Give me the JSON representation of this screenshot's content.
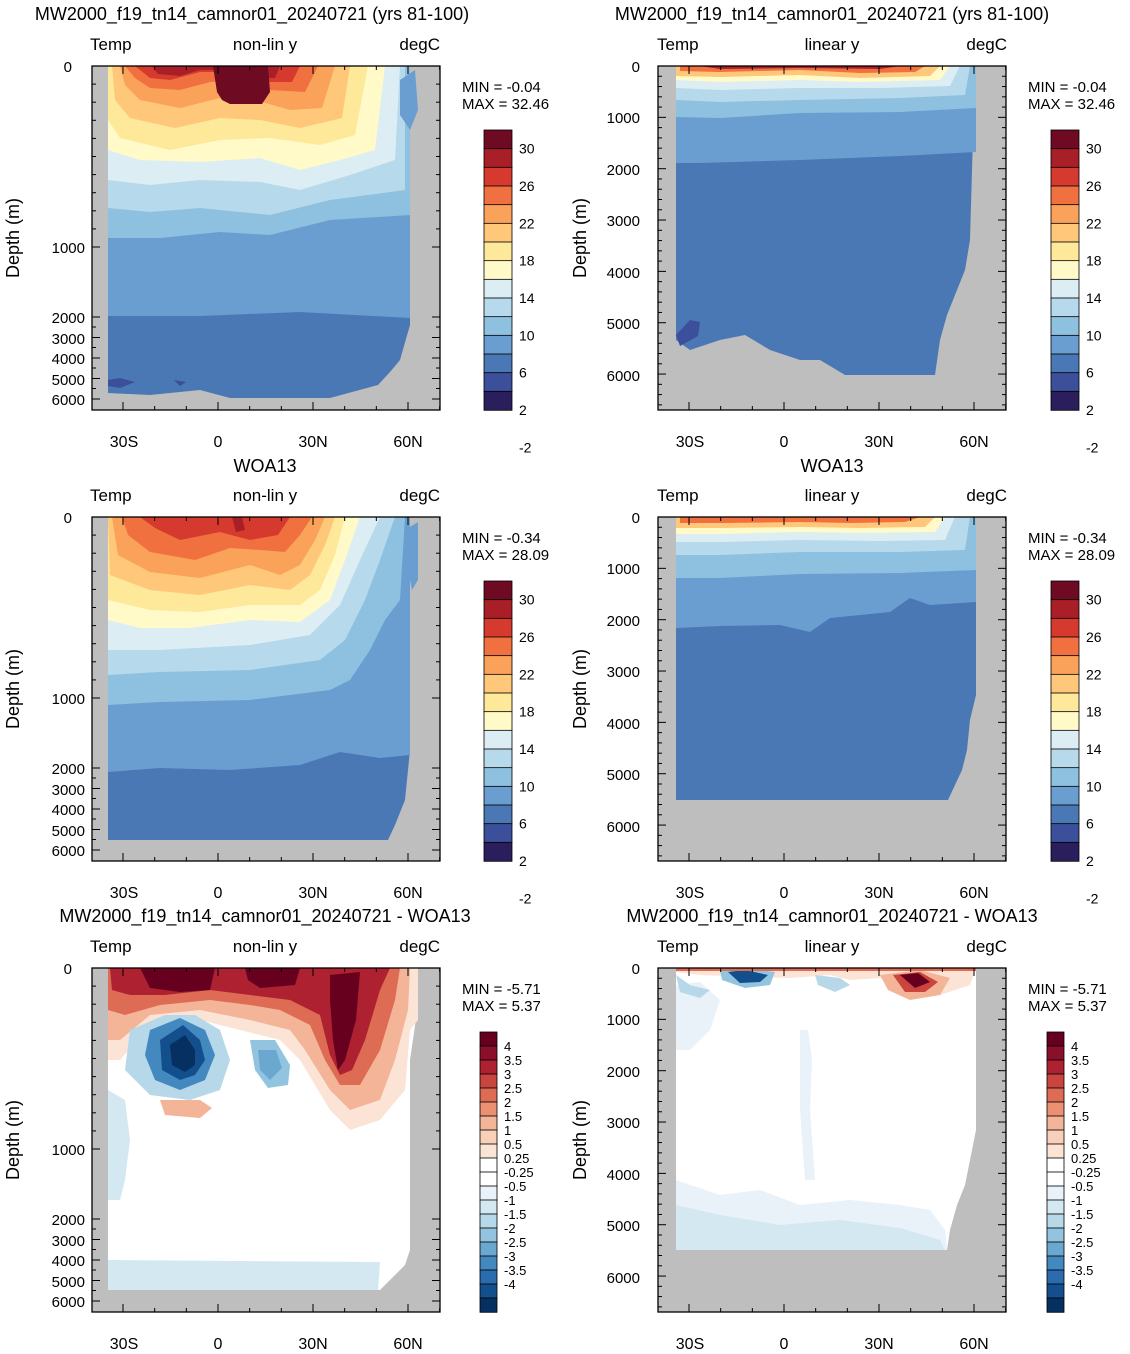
{
  "figure": {
    "colors": {
      "land": "#bebebe",
      "temp_levels": [
        "#2a1e5c",
        "#3b4f9a",
        "#4a78b5",
        "#6a9ed0",
        "#8ec0df",
        "#b6d9eb",
        "#dcedf4",
        "#fffac8",
        "#fee89a",
        "#fec77a",
        "#fba25a",
        "#f07040",
        "#d63a2e",
        "#a81f27",
        "#6e0b22"
      ],
      "diff_levels": [
        "#053061",
        "#124f8c",
        "#2a6cae",
        "#4389c0",
        "#6aa8d0",
        "#92c4df",
        "#b6d8e9",
        "#d4e8f2",
        "#e8f2f8",
        "#ffffff",
        "#ffffff",
        "#fbe4d6",
        "#f8cfb8",
        "#f4b497",
        "#ec9072",
        "#de6b54",
        "#c9453e",
        "#ad2131",
        "#8a0f2a",
        "#67001f"
      ]
    },
    "titles": {
      "model": "MW2000_f19_tn14_camnor01_20240721 (yrs 81-100)",
      "obs": "WOA13",
      "diff": "MW2000_f19_tn14_camnor01_20240721 - WOA13"
    },
    "header": {
      "left": "Temp",
      "nonlin": "non-lin y",
      "linear": "linear y",
      "right": "degC"
    },
    "ylabel": "Depth (m)",
    "xticks": [
      "30S",
      "0",
      "30N",
      "60N"
    ],
    "yticks_nonlin": [
      "0",
      "1000",
      "2000",
      "3000",
      "4000",
      "5000",
      "6000"
    ],
    "yticks_linear": [
      "0",
      "1000",
      "2000",
      "3000",
      "4000",
      "5000",
      "6000"
    ],
    "stats": {
      "model": {
        "min": "MIN = -0.04",
        "max": "MAX = 32.46"
      },
      "obs": {
        "min": "MIN = -0.34",
        "max": "MAX = 28.09"
      },
      "diff": {
        "min": "MIN = -5.71",
        "max": "MAX = 5.37"
      }
    },
    "temp_cb_labels": [
      "30",
      "26",
      "22",
      "18",
      "14",
      "10",
      "6",
      "2",
      "-2"
    ],
    "diff_cb_labels": [
      "4",
      "3.5",
      "3",
      "2.5",
      "2",
      "1.5",
      "1",
      "0.5",
      "0.25",
      "-0.25",
      "-0.5",
      "-1",
      "-1.5",
      "-2",
      "-2.5",
      "-3",
      "-3.5",
      "-4"
    ]
  },
  "chart_data": [
    {
      "type": "heatmap",
      "title": "MW2000_f19_tn14_camnor01_20240721 (yrs 81-100)",
      "variable": "Temp",
      "units": "degC",
      "y_axis": "non-lin y",
      "xlabel": "",
      "ylabel": "Depth (m)",
      "xticks": [
        "30S",
        "0",
        "30N",
        "60N"
      ],
      "ylim": [
        6500,
        0
      ],
      "min": -0.04,
      "max": 32.46
    },
    {
      "type": "heatmap",
      "title": "MW2000_f19_tn14_camnor01_20240721 (yrs 81-100)",
      "variable": "Temp",
      "units": "degC",
      "y_axis": "linear y",
      "xlabel": "",
      "ylabel": "Depth (m)",
      "xticks": [
        "30S",
        "0",
        "30N",
        "60N"
      ],
      "ylim": [
        6800,
        0
      ],
      "min": -0.04,
      "max": 32.46
    },
    {
      "type": "heatmap",
      "title": "WOA13",
      "variable": "Temp",
      "units": "degC",
      "y_axis": "non-lin y",
      "xlabel": "",
      "ylabel": "Depth (m)",
      "xticks": [
        "30S",
        "0",
        "30N",
        "60N"
      ],
      "ylim": [
        6500,
        0
      ],
      "min": -0.34,
      "max": 28.09
    },
    {
      "type": "heatmap",
      "title": "WOA13",
      "variable": "Temp",
      "units": "degC",
      "y_axis": "linear y",
      "xlabel": "",
      "ylabel": "Depth (m)",
      "xticks": [
        "30S",
        "0",
        "30N",
        "60N"
      ],
      "ylim": [
        6800,
        0
      ],
      "min": -0.34,
      "max": 28.09
    },
    {
      "type": "heatmap",
      "title": "MW2000_f19_tn14_camnor01_20240721 - WOA13",
      "variable": "Temp",
      "units": "degC",
      "y_axis": "non-lin y",
      "xlabel": "",
      "ylabel": "Depth (m)",
      "xticks": [
        "30S",
        "0",
        "30N",
        "60N"
      ],
      "ylim": [
        6500,
        0
      ],
      "min": -5.71,
      "max": 5.37
    },
    {
      "type": "heatmap",
      "title": "MW2000_f19_tn14_camnor01_20240721 - WOA13",
      "variable": "Temp",
      "units": "degC",
      "y_axis": "linear y",
      "xlabel": "",
      "ylabel": "Depth (m)",
      "xticks": [
        "30S",
        "0",
        "30N",
        "60N"
      ],
      "ylim": [
        6800,
        0
      ],
      "min": -5.71,
      "max": 5.37
    }
  ]
}
